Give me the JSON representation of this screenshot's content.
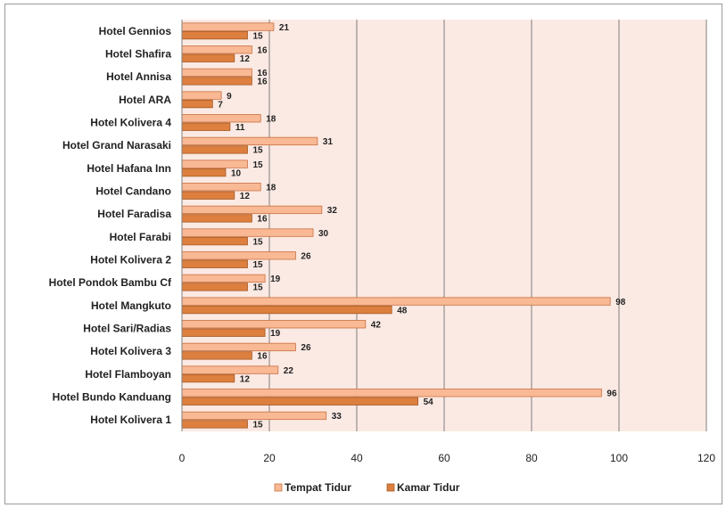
{
  "chart_data": {
    "type": "bar",
    "orientation": "horizontal",
    "categories": [
      "Hotel Gennios",
      "Hotel Shafira",
      "Hotel Annisa",
      "Hotel ARA",
      "Hotel Kolivera 4",
      "Hotel Grand Narasaki",
      "Hotel Hafana Inn",
      "Hotel Candano",
      "Hotel Faradisa",
      "Hotel Farabi",
      "Hotel Kolivera 2",
      "Hotel Pondok Bambu Cf",
      "Hotel Mangkuto",
      "Hotel Sari/Radias",
      "Hotel Kolivera 3",
      "Hotel Flamboyan",
      "Hotel Bundo Kanduang",
      "Hotel Kolivera 1"
    ],
    "series": [
      {
        "name": "Tempat Tidur",
        "color": "#f9b995",
        "stroke": "#c8703f",
        "values": [
          21,
          16,
          16,
          9,
          18,
          31,
          15,
          18,
          32,
          30,
          26,
          19,
          98,
          42,
          26,
          22,
          96,
          33
        ]
      },
      {
        "name": "Kamar Tidur",
        "color": "#dc7f3f",
        "stroke": "#a55a26",
        "values": [
          15,
          12,
          16,
          7,
          11,
          15,
          10,
          12,
          16,
          15,
          15,
          15,
          48,
          19,
          16,
          12,
          54,
          15
        ]
      }
    ],
    "xlim": [
      0,
      120
    ],
    "xticks": [
      0,
      20,
      40,
      60,
      80,
      100,
      120
    ],
    "grid": true,
    "legend_position": "bottom",
    "plot_background": "#fbe9e3"
  }
}
